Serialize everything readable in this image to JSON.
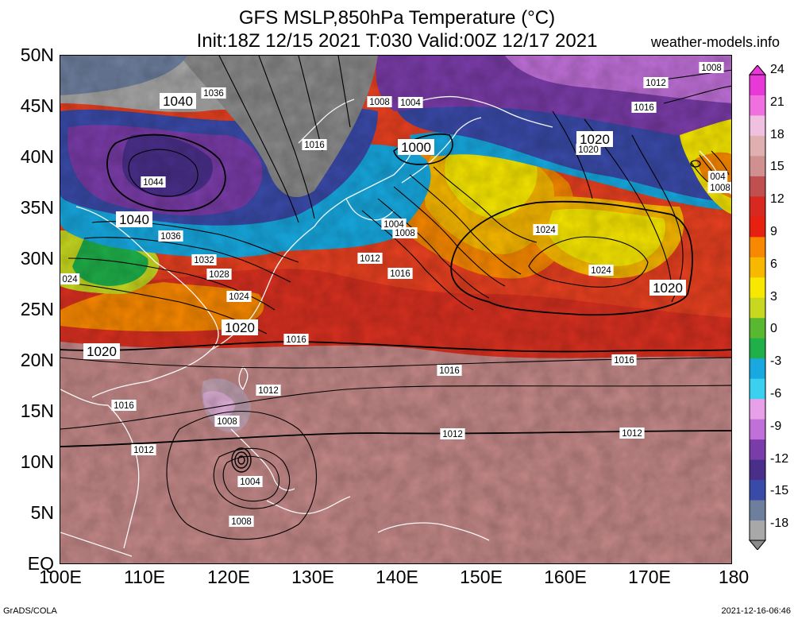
{
  "header": {
    "title_line_1": "GFS MSLP,850hPa Temperature (°C)",
    "title_line_2": "Init:18Z 12/15 2021 T:030 Valid:00Z 12/17 2021",
    "source": "weather-models.info"
  },
  "axes": {
    "lat_labels": [
      "50N",
      "45N",
      "40N",
      "35N",
      "30N",
      "25N",
      "20N",
      "15N",
      "10N",
      "5N",
      "EQ"
    ],
    "lon_labels": [
      "100E",
      "110E",
      "120E",
      "130E",
      "140E",
      "150E",
      "160E",
      "170E",
      "180"
    ]
  },
  "colorbar": {
    "labels": [
      "24",
      "21",
      "18",
      "15",
      "12",
      "9",
      "6",
      "3",
      "0",
      "-3",
      "-6",
      "-9",
      "-12",
      "-15",
      "-18"
    ],
    "colors": [
      "#a8a8a8",
      "#6e7f9e",
      "#3a4aa8",
      "#4a2f8a",
      "#7a3ca8",
      "#c070d8",
      "#e8a0e8",
      "#3ad0f0",
      "#17a9e0",
      "#1fb04a",
      "#58b830",
      "#c8d820",
      "#f8e800",
      "#f8b800",
      "#f88800",
      "#e82010",
      "#d82820",
      "#c05050",
      "#d09090",
      "#e0b0b0",
      "#f0c0e0",
      "#f070e0",
      "#e838d8"
    ]
  },
  "isobars": {
    "labels": [
      "1040",
      "1036",
      "1008",
      "1004",
      "1016",
      "1000",
      "1044",
      "1040",
      "1036",
      "1032",
      "1028",
      "1024",
      "1020",
      "1020",
      "1004",
      "1008",
      "1012",
      "1016",
      "1024",
      "1024",
      "1020",
      "1020",
      "1016",
      "1016",
      "1016",
      "1016",
      "1012",
      "1012",
      "1012",
      "1012",
      "1008",
      "1004",
      "1008",
      "024",
      "1008",
      "1012",
      "1016",
      "1020",
      "1008",
      "004"
    ],
    "highs": [
      "1040",
      "1044",
      "1020",
      "1020"
    ],
    "lows": [
      "1000",
      "1004",
      "1004",
      "1008"
    ]
  },
  "footer": {
    "left": "GrADS/COLA",
    "right": "2021-12-16-06:46"
  }
}
